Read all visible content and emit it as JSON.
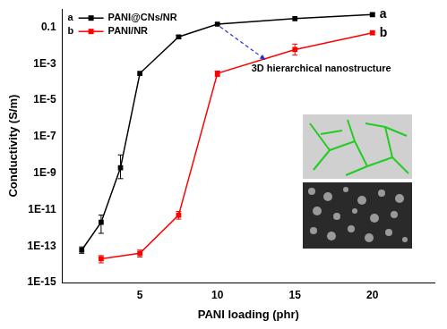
{
  "chart_data": {
    "type": "line",
    "x_label": "PANI loading (phr)",
    "y_label": "Conductivity (S/m)",
    "log": "y",
    "grid": false,
    "legend": "upper left",
    "xlim": [
      0,
      24
    ],
    "xticks": [
      5,
      10,
      15,
      20
    ],
    "ylim": [
      1e-15,
      1
    ],
    "yticks": [
      0.1,
      {
        "value": 0.001,
        "label": "1E-3"
      },
      {
        "value": 1e-05,
        "label": "1E-5"
      },
      {
        "value": 1e-07,
        "label": "1E-7"
      },
      {
        "value": 1e-09,
        "label": "1E-9"
      },
      {
        "value": 1e-11,
        "label": "1E-11"
      },
      {
        "value": 1e-13,
        "label": "1E-13"
      },
      {
        "value": 1e-15,
        "label": "1E-15"
      }
    ],
    "series": [
      {
        "name": "PANI@CNs/NR",
        "label": "a",
        "color": "#000000",
        "marker": "square",
        "line_style": "solid",
        "x": [
          1.25,
          2.5,
          3.75,
          5,
          7.5,
          10,
          15,
          20
        ],
        "values": [
          6e-14,
          2e-12,
          2e-09,
          0.0003,
          0.03,
          0.15,
          0.3,
          0.5
        ],
        "error_low": [
          4e-14,
          5e-13,
          5e-10,
          null,
          0.025,
          null,
          null,
          0.42
        ],
        "error_high": [
          9e-14,
          5e-12,
          1e-08,
          null,
          0.036,
          null,
          null,
          0.6
        ]
      },
      {
        "name": "PANI/NR",
        "label": "b",
        "color": "#ff0000",
        "marker": "square",
        "line_style": "solid",
        "x": [
          2.5,
          5,
          7.5,
          10,
          15,
          20
        ],
        "values": [
          2e-14,
          4e-14,
          5e-12,
          0.0003,
          0.006,
          0.05
        ],
        "error_low": [
          1.2e-14,
          2.5e-14,
          3e-12,
          0.0002,
          0.003,
          0.04
        ],
        "error_high": [
          3e-14,
          6e-14,
          8e-12,
          0.0004,
          0.012,
          0.06
        ]
      }
    ],
    "annotations": [
      {
        "text": "3D hierarchical nanostructure",
        "x": 10,
        "y": 0.15
      }
    ]
  }
}
